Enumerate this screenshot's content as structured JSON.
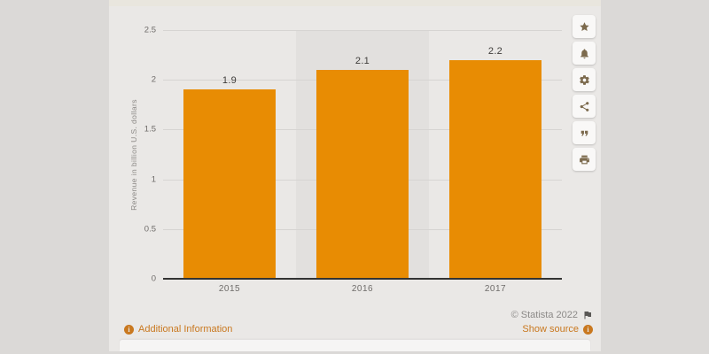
{
  "page": {
    "outer_background": "#dbd9d7",
    "card_background": "#eae8e6"
  },
  "chart_data": {
    "type": "bar",
    "title": "",
    "categories": [
      "2015",
      "2016",
      "2017"
    ],
    "values": [
      1.9,
      2.1,
      2.2
    ],
    "value_labels": [
      "1.9",
      "2.1",
      "2.2"
    ],
    "xlabel": "",
    "ylabel": "Revenue in billion U.S. dollars",
    "ylim": [
      0,
      2.5
    ],
    "yticks": [
      0,
      0.5,
      1,
      1.5,
      2,
      2.5
    ],
    "ytick_labels": [
      "0",
      "0.5",
      "1",
      "1.5",
      "2",
      "2.5"
    ],
    "grid": true,
    "legend": "none",
    "bar_color": "#e88c03",
    "highlighted_category": "2016"
  },
  "toolbar": {
    "buttons": [
      {
        "name": "favorite-button",
        "icon": "star-icon"
      },
      {
        "name": "notification-button",
        "icon": "bell-icon"
      },
      {
        "name": "settings-button",
        "icon": "gear-icon"
      },
      {
        "name": "share-button",
        "icon": "share-icon"
      },
      {
        "name": "cite-button",
        "icon": "quote-icon"
      },
      {
        "name": "print-button",
        "icon": "print-icon"
      }
    ]
  },
  "footer": {
    "additional_info_label": "Additional Information",
    "copyright": "© Statista 2022",
    "show_source_label": "Show source",
    "link_color": "#c9781f"
  }
}
